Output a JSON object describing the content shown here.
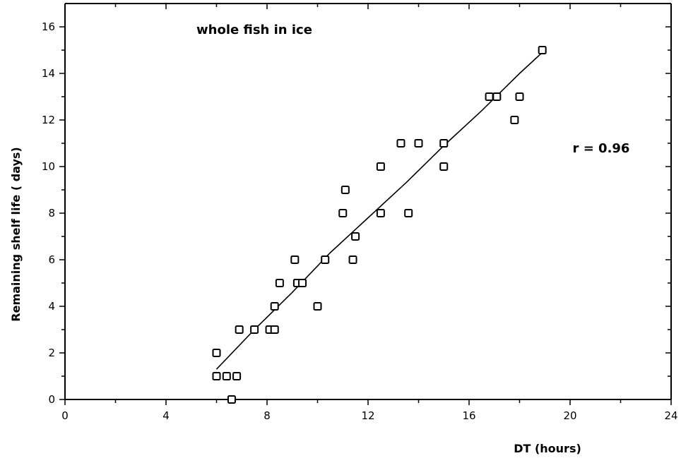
{
  "chart_data": {
    "type": "scatter",
    "title": "whole fish in ice",
    "xlabel": "DT (hours)",
    "ylabel": "Remaining shelf life ( days)",
    "xlim": [
      0,
      24
    ],
    "ylim": [
      0,
      17
    ],
    "xticks": [
      0,
      4,
      8,
      12,
      16,
      20,
      24
    ],
    "yticks": [
      0,
      2,
      4,
      6,
      8,
      10,
      12,
      14,
      16
    ],
    "annotation": "r = 0.96",
    "grid": false,
    "points": [
      {
        "x": 6.0,
        "y": 2
      },
      {
        "x": 6.0,
        "y": 1
      },
      {
        "x": 6.4,
        "y": 1
      },
      {
        "x": 6.8,
        "y": 1
      },
      {
        "x": 6.6,
        "y": 0
      },
      {
        "x": 6.9,
        "y": 3
      },
      {
        "x": 7.5,
        "y": 3
      },
      {
        "x": 8.1,
        "y": 3
      },
      {
        "x": 8.3,
        "y": 3
      },
      {
        "x": 8.3,
        "y": 4
      },
      {
        "x": 8.5,
        "y": 5
      },
      {
        "x": 9.1,
        "y": 6
      },
      {
        "x": 9.2,
        "y": 5
      },
      {
        "x": 9.4,
        "y": 5
      },
      {
        "x": 10.0,
        "y": 4
      },
      {
        "x": 10.3,
        "y": 6
      },
      {
        "x": 11.0,
        "y": 8
      },
      {
        "x": 11.1,
        "y": 9
      },
      {
        "x": 11.4,
        "y": 6
      },
      {
        "x": 11.5,
        "y": 7
      },
      {
        "x": 12.5,
        "y": 10
      },
      {
        "x": 12.5,
        "y": 8
      },
      {
        "x": 13.3,
        "y": 11
      },
      {
        "x": 13.6,
        "y": 8
      },
      {
        "x": 14.0,
        "y": 11
      },
      {
        "x": 15.0,
        "y": 11
      },
      {
        "x": 15.0,
        "y": 10
      },
      {
        "x": 16.8,
        "y": 13
      },
      {
        "x": 17.1,
        "y": 13
      },
      {
        "x": 17.8,
        "y": 12
      },
      {
        "x": 18.0,
        "y": 13
      },
      {
        "x": 18.9,
        "y": 15
      }
    ],
    "fit_line": [
      {
        "x": 6.0,
        "y": 1.3
      },
      {
        "x": 7.5,
        "y": 3.0
      },
      {
        "x": 9.0,
        "y": 4.6
      },
      {
        "x": 10.5,
        "y": 6.3
      },
      {
        "x": 12.0,
        "y": 7.8
      },
      {
        "x": 13.5,
        "y": 9.3
      },
      {
        "x": 15.0,
        "y": 10.9
      },
      {
        "x": 16.5,
        "y": 12.4
      },
      {
        "x": 18.0,
        "y": 14.0
      },
      {
        "x": 18.9,
        "y": 14.9
      }
    ]
  }
}
